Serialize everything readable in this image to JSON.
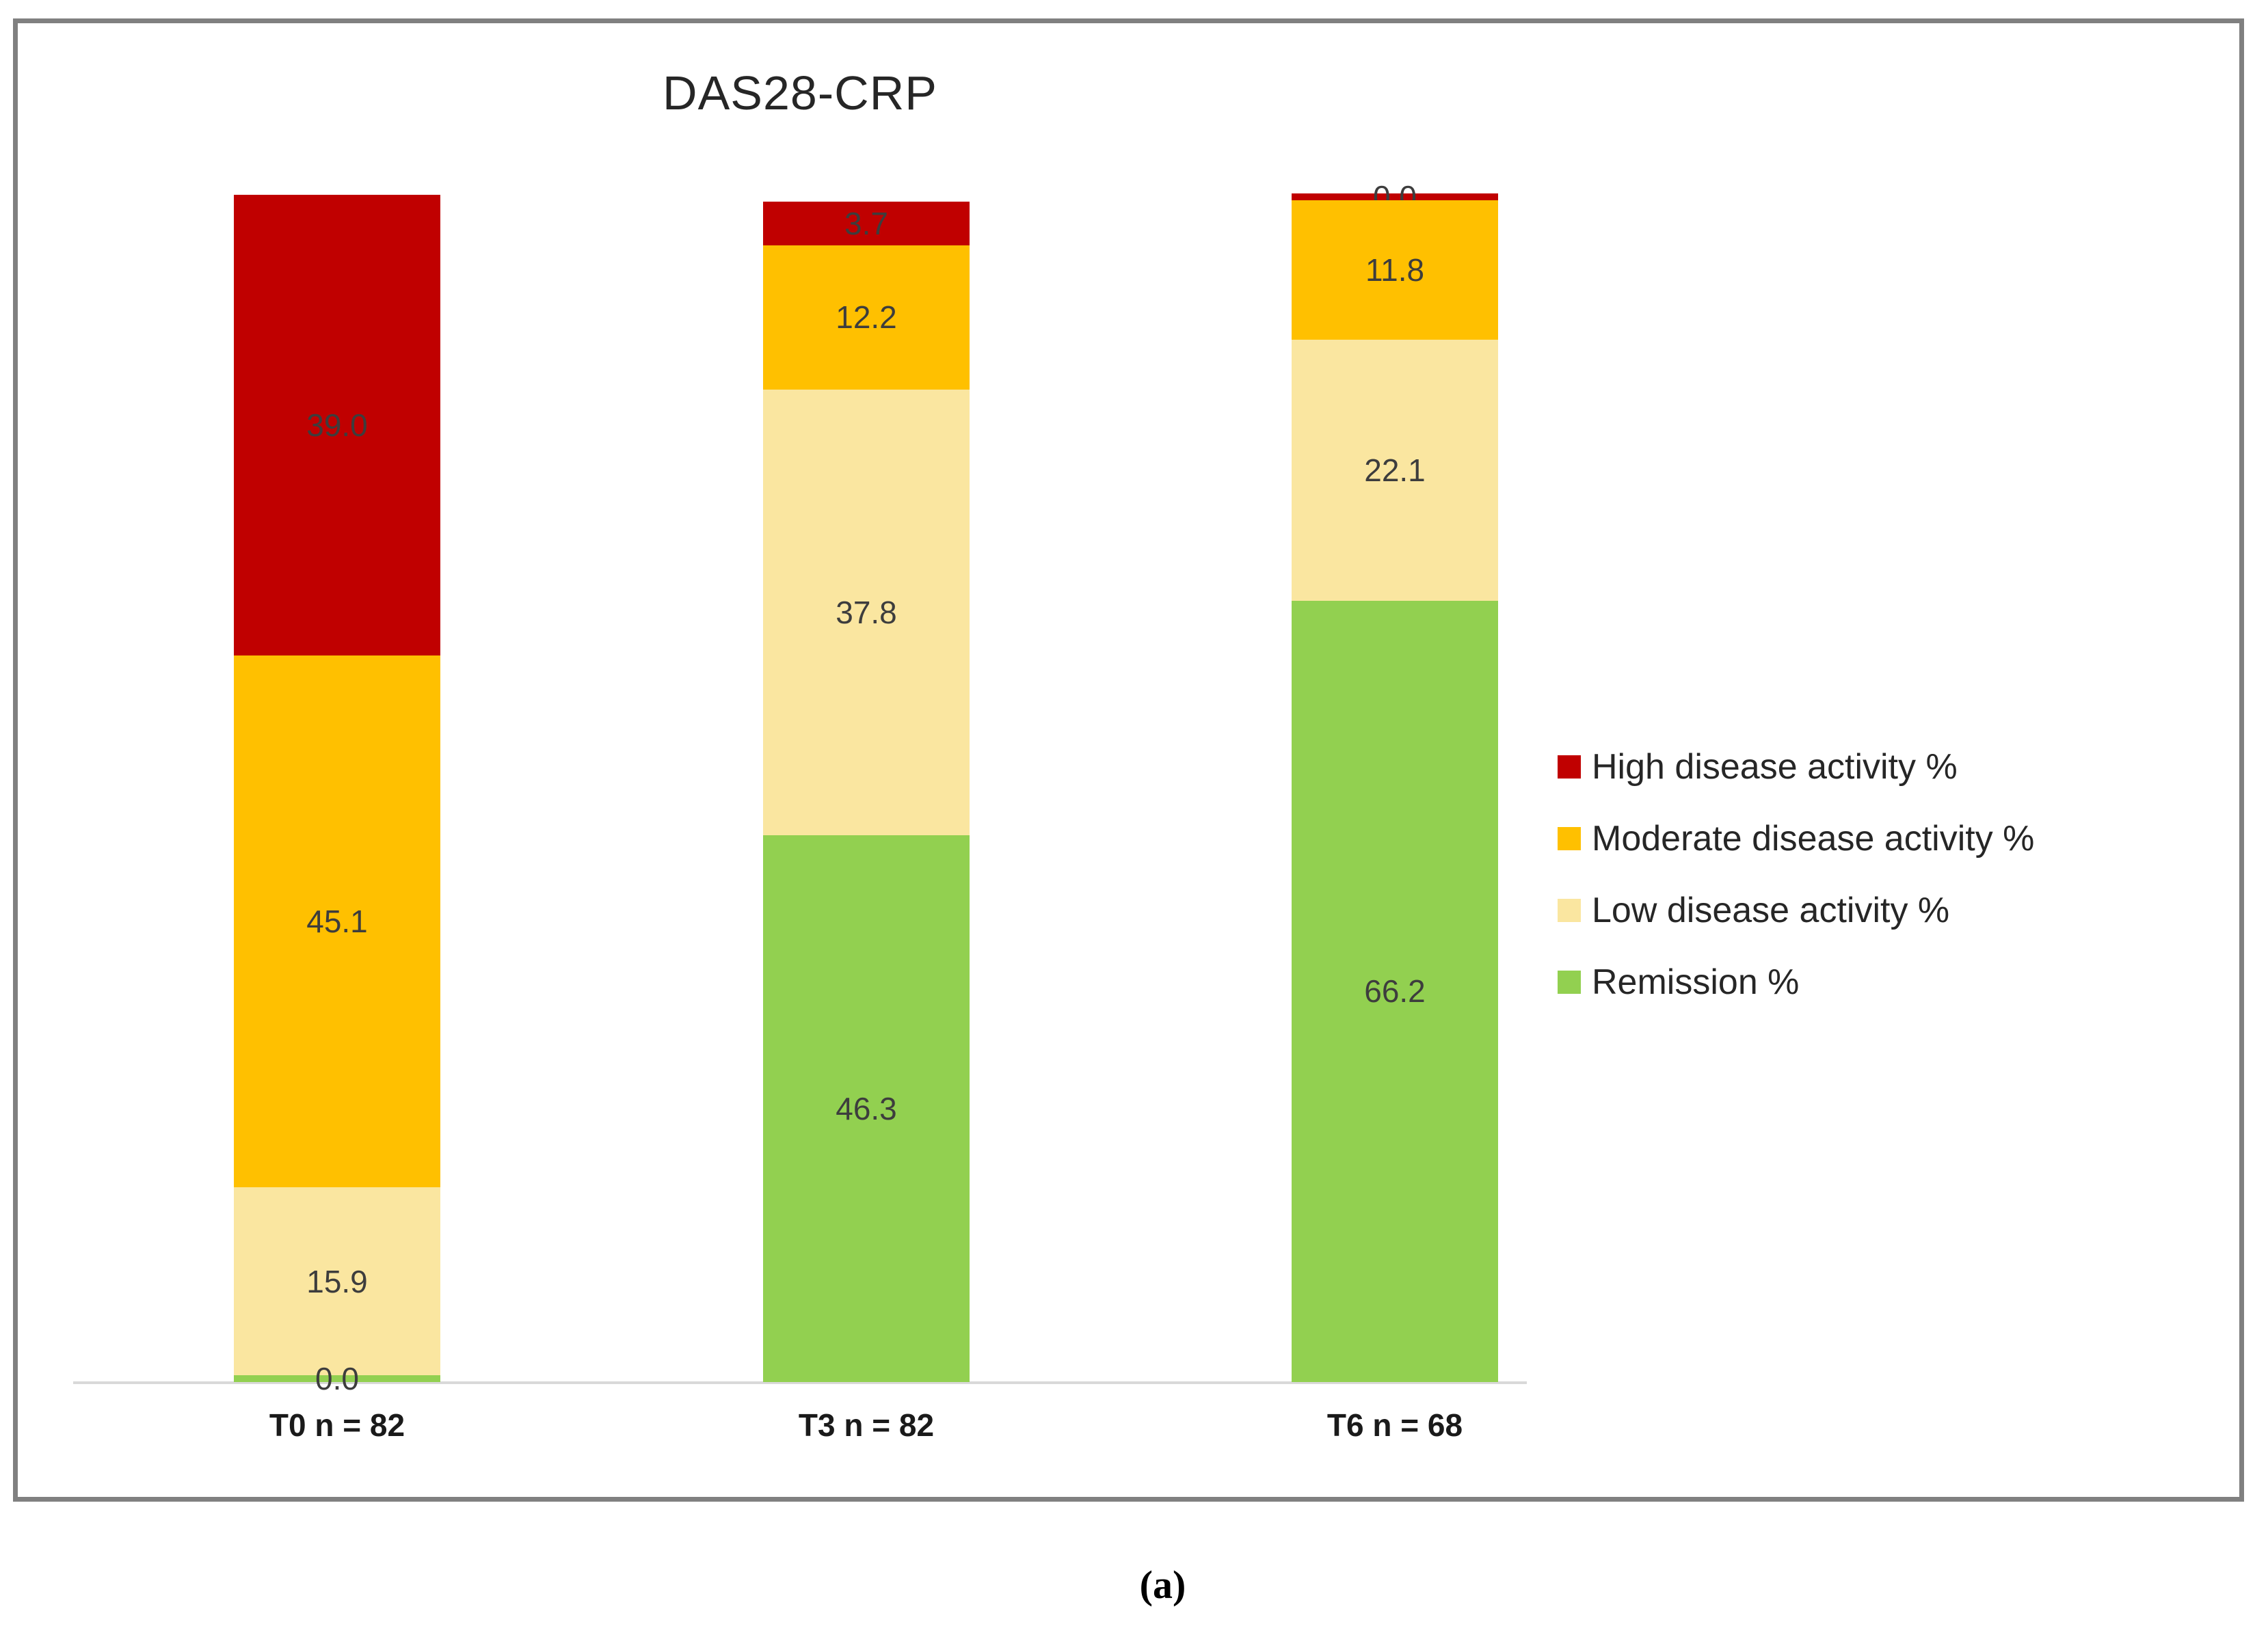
{
  "figure": {
    "caption": "(a)"
  },
  "chart_data": {
    "type": "bar",
    "stacked": true,
    "title": "DAS28-CRP",
    "categories": [
      "T0 n = 82",
      "T3 n = 82",
      "T6 n = 68"
    ],
    "series": [
      {
        "name": "High disease activity %",
        "color": "#C00000",
        "values": [
          39.0,
          3.7,
          0.0
        ]
      },
      {
        "name": "Moderate disease activity %",
        "color": "#FFC000",
        "values": [
          45.1,
          12.2,
          11.8
        ]
      },
      {
        "name": "Low disease activity %",
        "color": "#FAE6A0",
        "values": [
          15.9,
          37.8,
          22.1
        ]
      },
      {
        "name": "Remission %",
        "color": "#92D050",
        "values": [
          0.0,
          46.3,
          66.2
        ]
      }
    ],
    "ylim": [
      0,
      100
    ],
    "value_label_format": "1-decimal",
    "legend_position": "right",
    "grid": false,
    "axis_line_color": "#D9D9D9",
    "frame_border_color": "#808080"
  }
}
